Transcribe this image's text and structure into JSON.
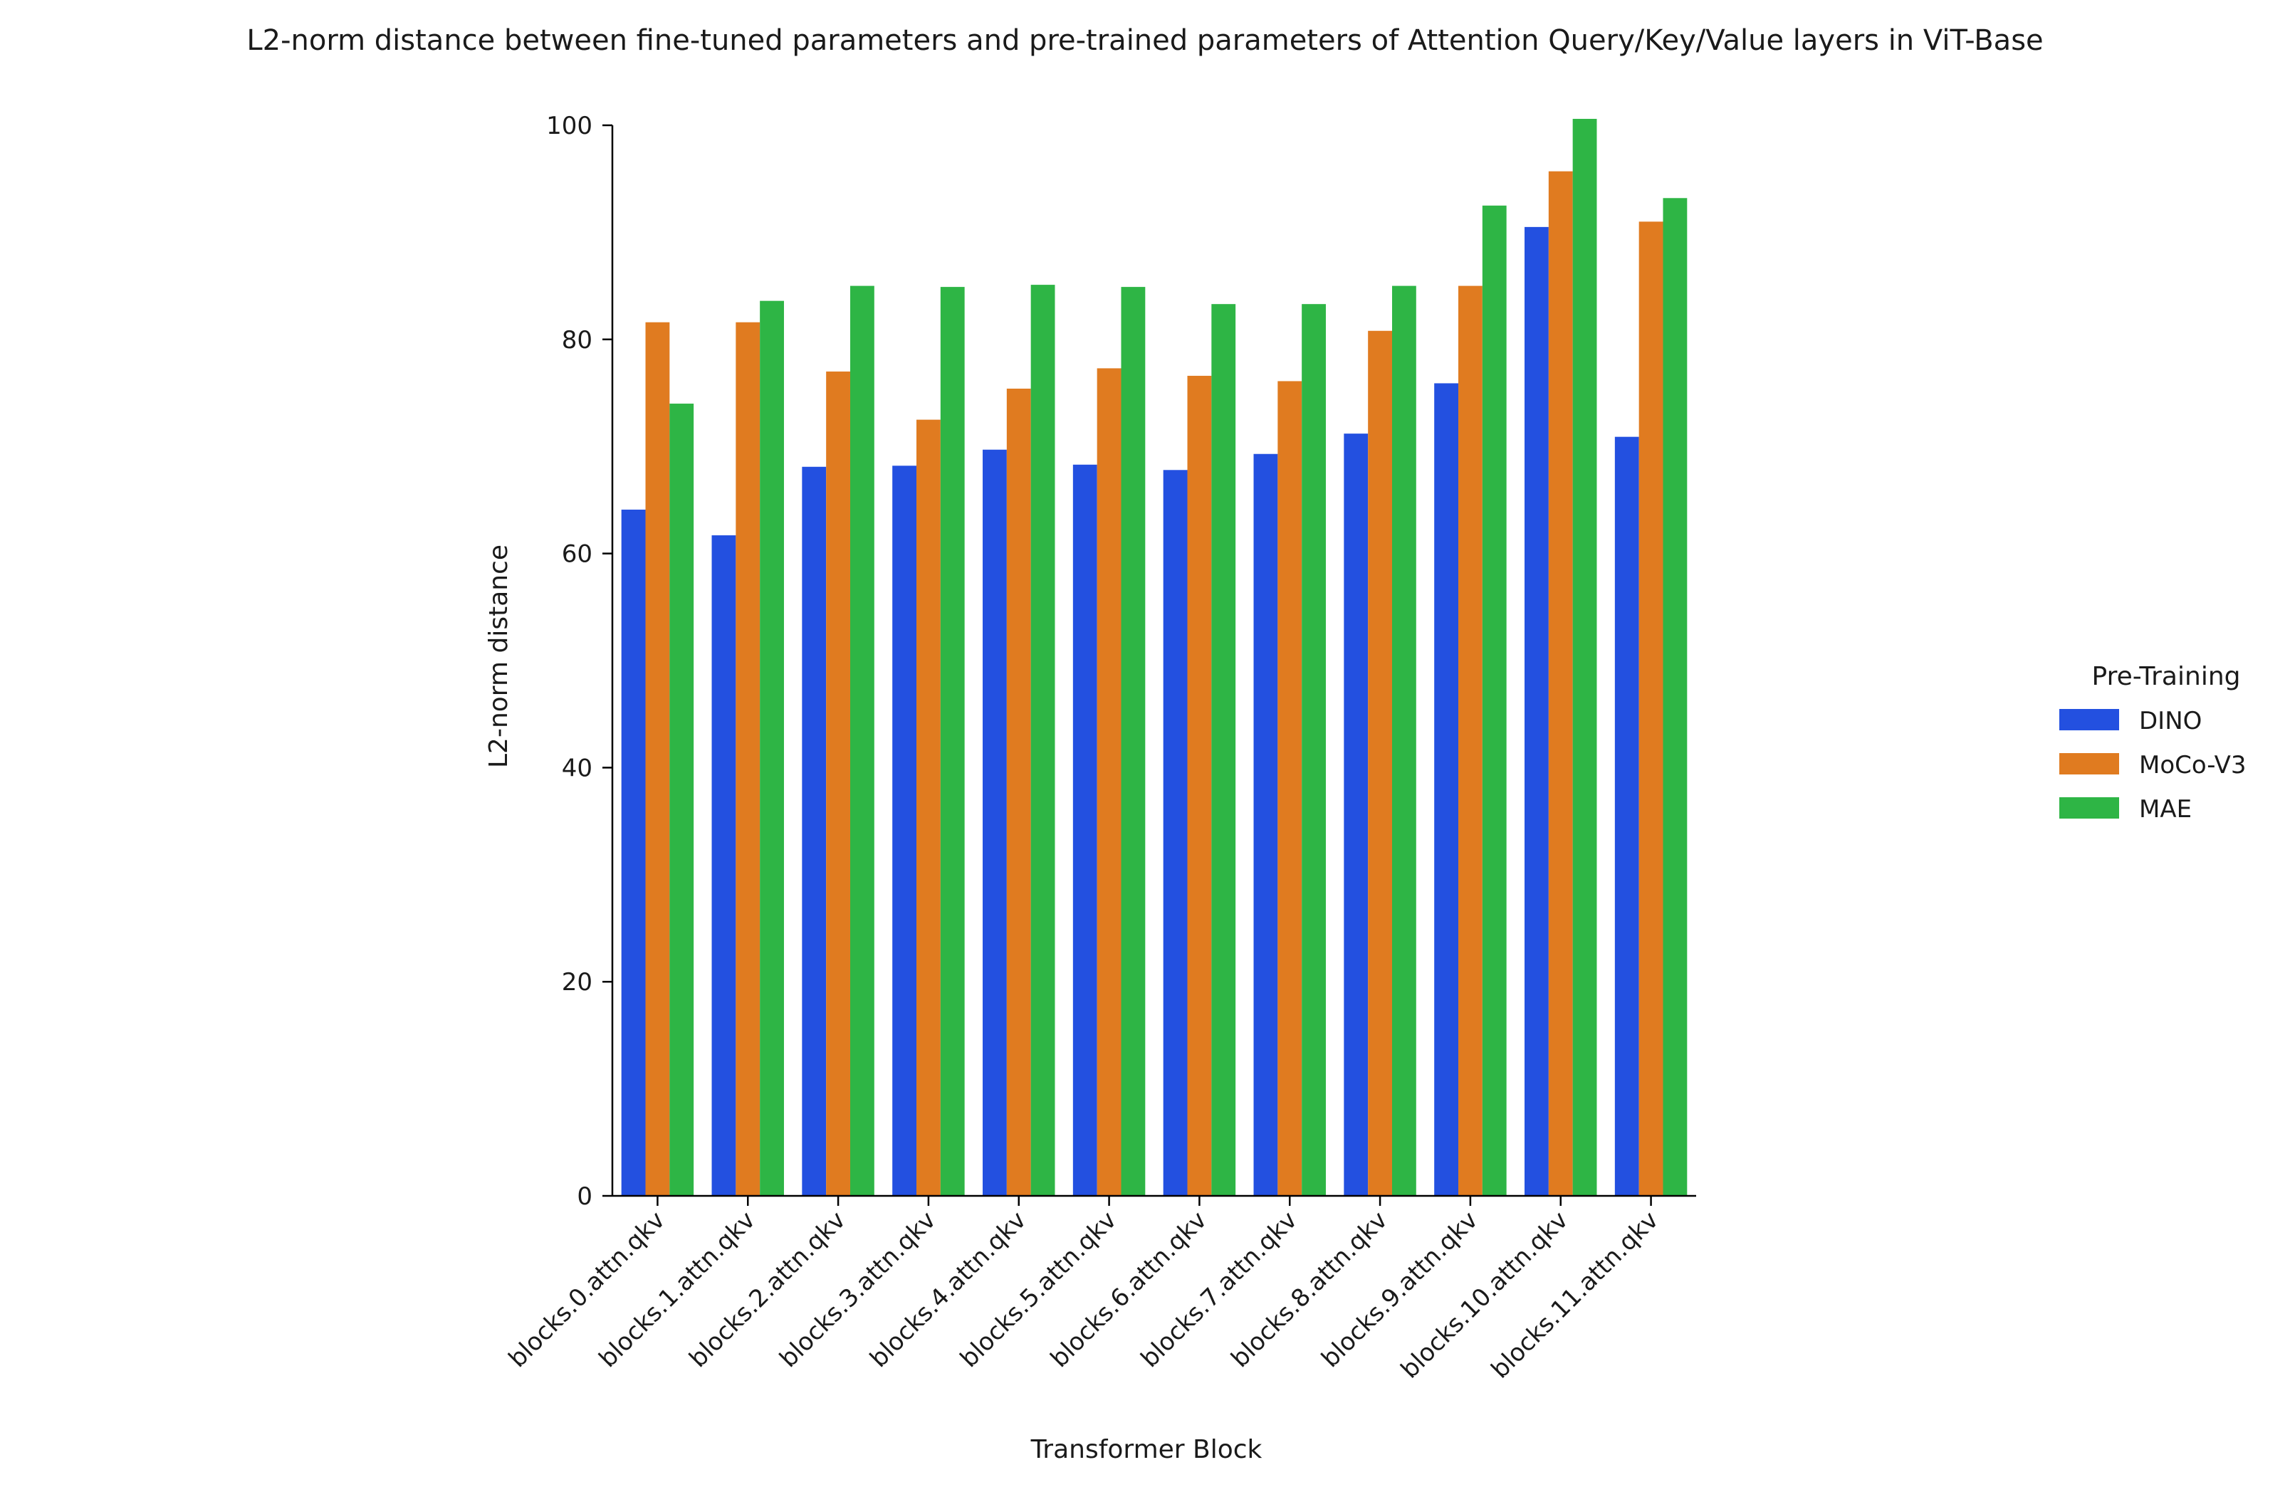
{
  "chart_data": {
    "type": "bar",
    "title": "L2-norm distance between fine-tuned parameters and pre-trained parameters of Attention Query/Key/Value layers in ViT-Base",
    "xlabel": "Transformer Block",
    "ylabel": "L2-norm distance",
    "ylim": [
      0,
      100
    ],
    "yticks": [
      0,
      20,
      40,
      60,
      80,
      100
    ],
    "grid": false,
    "legend": {
      "title": "Pre-Training",
      "placement": "right"
    },
    "categories": [
      "blocks.0.attn.qkv",
      "blocks.1.attn.qkv",
      "blocks.2.attn.qkv",
      "blocks.3.attn.qkv",
      "blocks.4.attn.qkv",
      "blocks.5.attn.qkv",
      "blocks.6.attn.qkv",
      "blocks.7.attn.qkv",
      "blocks.8.attn.qkv",
      "blocks.9.attn.qkv",
      "blocks.10.attn.qkv",
      "blocks.11.attn.qkv"
    ],
    "series": [
      {
        "name": "DINO",
        "color": "#2350e0",
        "values": [
          64.1,
          61.7,
          68.1,
          68.2,
          69.7,
          68.3,
          67.8,
          69.3,
          71.2,
          75.9,
          90.5,
          70.9
        ]
      },
      {
        "name": "MoCo-V3",
        "color": "#e07b20",
        "values": [
          81.6,
          81.6,
          77.0,
          72.5,
          75.4,
          77.3,
          76.6,
          76.1,
          80.8,
          85.0,
          95.7,
          91.0
        ]
      },
      {
        "name": "MAE",
        "color": "#2eb545",
        "values": [
          74.0,
          83.6,
          85.0,
          84.9,
          85.1,
          84.9,
          83.3,
          83.3,
          85.0,
          92.5,
          100.6,
          93.2
        ]
      }
    ]
  }
}
